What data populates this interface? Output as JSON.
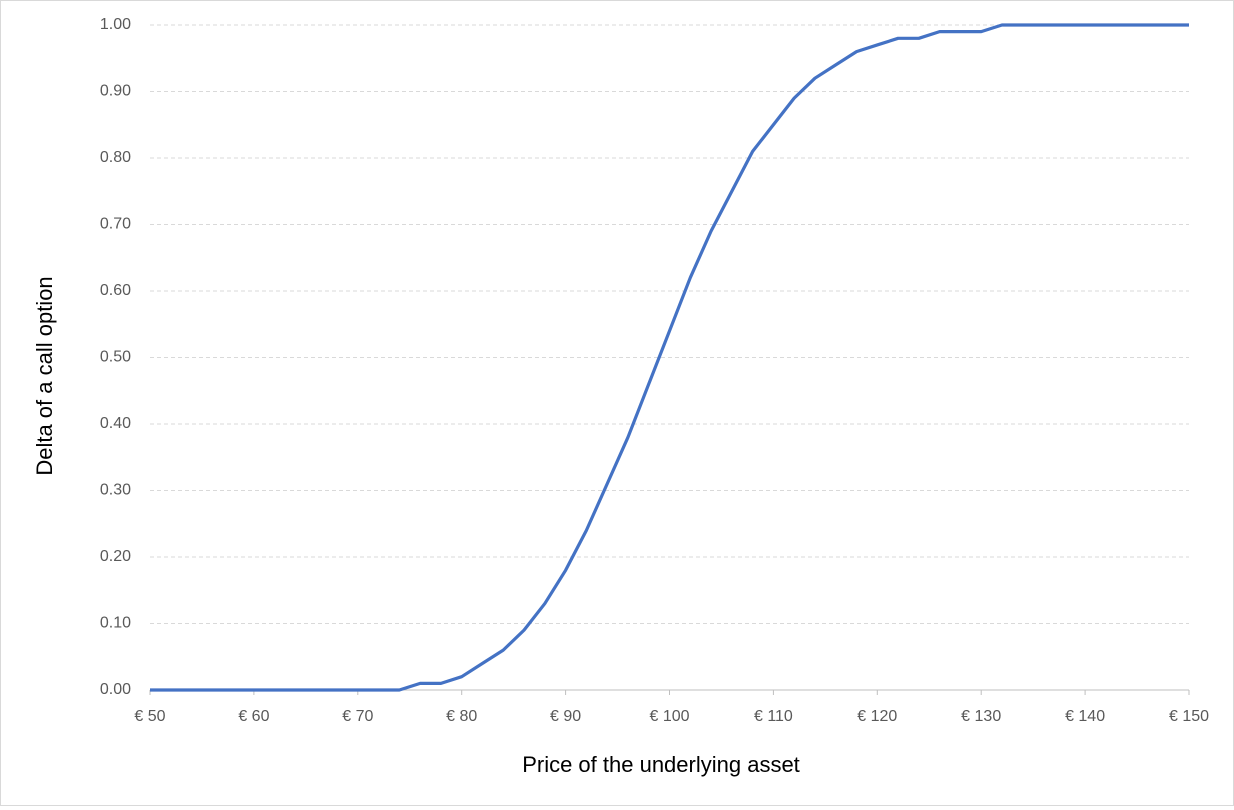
{
  "chart_data": {
    "type": "line",
    "x_label": "Price of the underlying asset",
    "y_label": "Delta of a call option",
    "x": [
      50,
      52,
      54,
      56,
      58,
      60,
      62,
      64,
      66,
      68,
      70,
      72,
      74,
      76,
      78,
      80,
      82,
      84,
      86,
      88,
      90,
      92,
      94,
      96,
      98,
      100,
      102,
      104,
      106,
      108,
      110,
      112,
      114,
      116,
      118,
      120,
      122,
      124,
      126,
      128,
      130,
      132,
      134,
      136,
      138,
      140,
      142,
      144,
      146,
      148,
      150
    ],
    "values": [
      0,
      0,
      0,
      0,
      0,
      0,
      0,
      0,
      0,
      0,
      0,
      0,
      0,
      0.01,
      0.01,
      0.02,
      0.04,
      0.06,
      0.09,
      0.13,
      0.18,
      0.24,
      0.31,
      0.38,
      0.46,
      0.54,
      0.62,
      0.69,
      0.75,
      0.81,
      0.85,
      0.89,
      0.92,
      0.94,
      0.96,
      0.97,
      0.98,
      0.98,
      0.99,
      0.99,
      0.99,
      1,
      1,
      1,
      1,
      1,
      1,
      1,
      1,
      1,
      1
    ],
    "color": "#4472c4",
    "xlim": [
      50,
      150
    ],
    "ylim": [
      0,
      1
    ],
    "xticks": [
      {
        "value": 50,
        "label": "€ 50"
      },
      {
        "value": 60,
        "label": "€ 60"
      },
      {
        "value": 70,
        "label": "€ 70"
      },
      {
        "value": 80,
        "label": "€ 80"
      },
      {
        "value": 90,
        "label": "€ 90"
      },
      {
        "value": 100,
        "label": "€ 100"
      },
      {
        "value": 110,
        "label": "€ 110"
      },
      {
        "value": 120,
        "label": "€ 120"
      },
      {
        "value": 130,
        "label": "€ 130"
      },
      {
        "value": 140,
        "label": "€ 140"
      },
      {
        "value": 150,
        "label": "€ 150"
      }
    ],
    "yticks": [
      {
        "value": 0,
        "label": "0.00"
      },
      {
        "value": 0.1,
        "label": "0.10"
      },
      {
        "value": 0.2,
        "label": "0.20"
      },
      {
        "value": 0.3,
        "label": "0.30"
      },
      {
        "value": 0.4,
        "label": "0.40"
      },
      {
        "value": 0.5,
        "label": "0.50"
      },
      {
        "value": 0.6,
        "label": "0.60"
      },
      {
        "value": 0.7,
        "label": "0.70"
      },
      {
        "value": 0.8,
        "label": "0.80"
      },
      {
        "value": 0.9,
        "label": "0.90"
      },
      {
        "value": 1,
        "label": "1.00"
      }
    ],
    "grid": true
  }
}
